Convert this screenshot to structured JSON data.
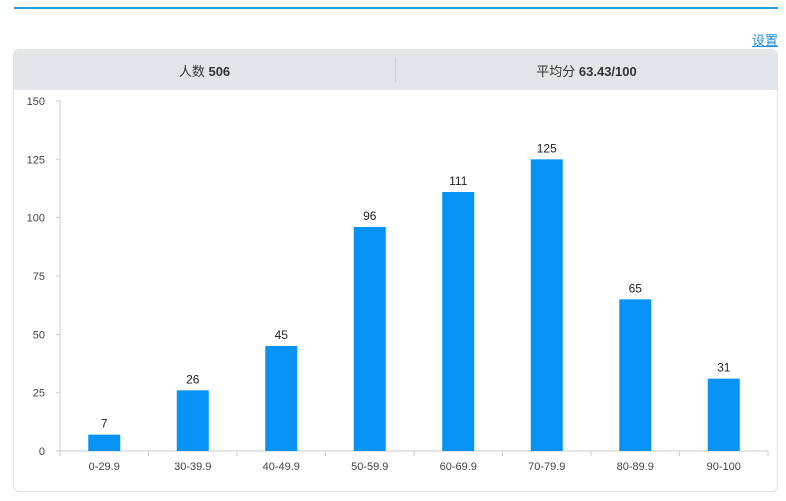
{
  "header": {
    "settings_label": "设置"
  },
  "summary": {
    "count_label": "人数",
    "count_value": "506",
    "avg_label": "平均分",
    "avg_value": "63.43/100"
  },
  "colors": {
    "bar": "#0693f5",
    "accent": "#2b9be0"
  },
  "chart_data": {
    "type": "bar",
    "categories": [
      "0-29.9",
      "30-39.9",
      "40-49.9",
      "50-59.9",
      "60-69.9",
      "70-79.9",
      "80-89.9",
      "90-100"
    ],
    "values": [
      7,
      26,
      45,
      96,
      111,
      125,
      65,
      31
    ],
    "yticks": [
      0,
      25,
      50,
      75,
      100,
      125,
      150
    ],
    "ylim": [
      0,
      150
    ],
    "title": "",
    "xlabel": "",
    "ylabel": "",
    "grid": false
  }
}
